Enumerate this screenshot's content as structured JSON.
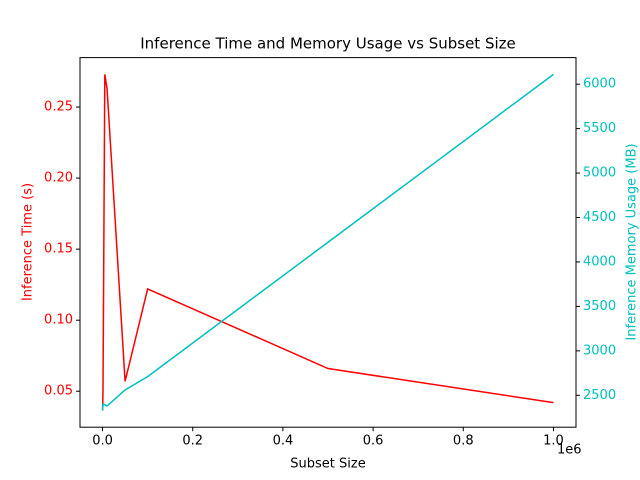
{
  "chart_data": {
    "type": "line",
    "title": "Inference Time and Memory Usage vs Subset Size",
    "x_label": "Subset Size",
    "y_label": "Inference Time (s)",
    "y2_label": "Inference Memory Usage (MB)",
    "x_offset_label": "1e6",
    "x": [
      100,
      1000,
      5000,
      10000,
      50000,
      100000,
      500000,
      1000000
    ],
    "xlim": [
      -50000,
      1050000
    ],
    "xticks": [
      {
        "value": 0,
        "label": "0.0"
      },
      {
        "value": 200000,
        "label": "0.2"
      },
      {
        "value": 400000,
        "label": "0.4"
      },
      {
        "value": 600000,
        "label": "0.6"
      },
      {
        "value": 800000,
        "label": "0.8"
      },
      {
        "value": 1000000,
        "label": "1.0"
      }
    ],
    "ylim": [
      0.0247,
      0.2848
    ],
    "yticks": [
      {
        "value": 0.05,
        "label": "0.05"
      },
      {
        "value": 0.1,
        "label": "0.10"
      },
      0.15,
      {
        "value": 0.2,
        "label": "0.20"
      },
      0.25
    ],
    "y_color": "#ff0000",
    "y2lim": [
      2141,
      6299
    ],
    "y2ticks": [
      2500,
      3000,
      3500,
      4000,
      4500,
      5000,
      5500,
      6000
    ],
    "y2_color": "#00bfbf",
    "series": [
      {
        "color": "#ff0000",
        "values": [
          0.0365,
          0.05,
          0.273,
          0.263,
          0.057,
          0.122,
          0.066,
          0.042
        ]
      },
      {
        "color": "#00bfbf",
        "axis": "y2",
        "values": [
          2330,
          2400,
          2395,
          2380,
          2560,
          2710,
          4222,
          6110
        ]
      }
    ]
  }
}
